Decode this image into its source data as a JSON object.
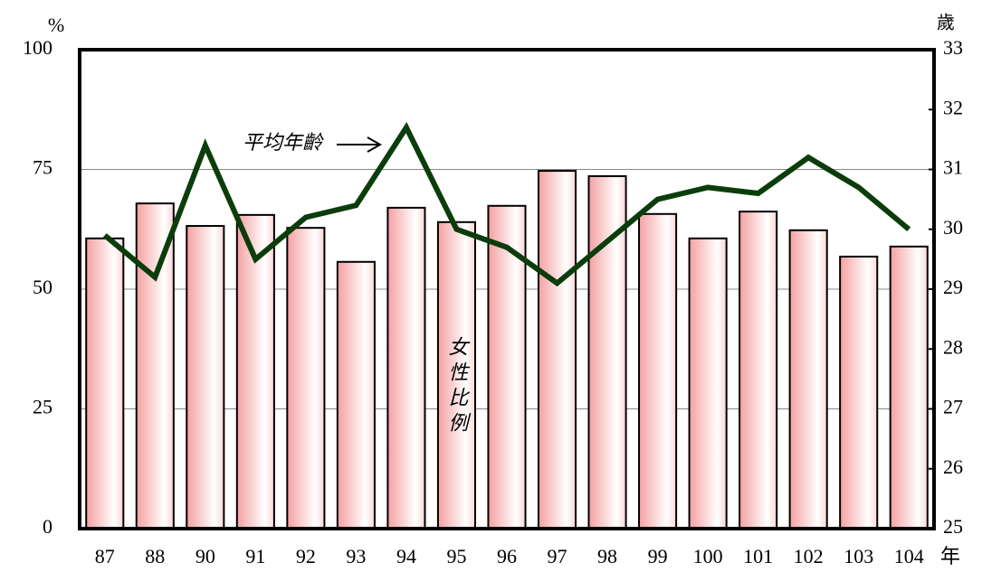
{
  "chart_data": {
    "type": "bar",
    "categories": [
      "87",
      "88",
      "90",
      "91",
      "92",
      "93",
      "94",
      "95",
      "96",
      "97",
      "98",
      "99",
      "100",
      "101",
      "102",
      "103",
      "104"
    ],
    "series": [
      {
        "name": "女性比例",
        "type": "bar",
        "color": "#f4a0a0",
        "values": [
          60.6,
          67.9,
          63.2,
          65.5,
          62.8,
          55.7,
          67.0,
          64.0,
          67.4,
          74.7,
          73.6,
          65.7,
          60.6,
          66.2,
          62.3,
          56.8,
          58.9
        ]
      },
      {
        "name": "平均年齡",
        "type": "line",
        "axis": "y2",
        "color": "#0b3d0b",
        "values": [
          29.9,
          29.2,
          31.4,
          29.5,
          30.2,
          30.4,
          31.7,
          30.0,
          29.7,
          29.1,
          29.8,
          30.5,
          30.7,
          30.6,
          31.2,
          30.7,
          30.0
        ]
      }
    ],
    "ylabel": "%",
    "y2label": "歲",
    "xlabel": "年",
    "ylim": [
      0,
      100
    ],
    "yticks": [
      0,
      25,
      50,
      75,
      100
    ],
    "y2lim": [
      25,
      33
    ],
    "y2ticks": [
      25,
      26,
      27,
      28,
      29,
      30,
      31,
      32,
      33
    ],
    "grid": true
  }
}
